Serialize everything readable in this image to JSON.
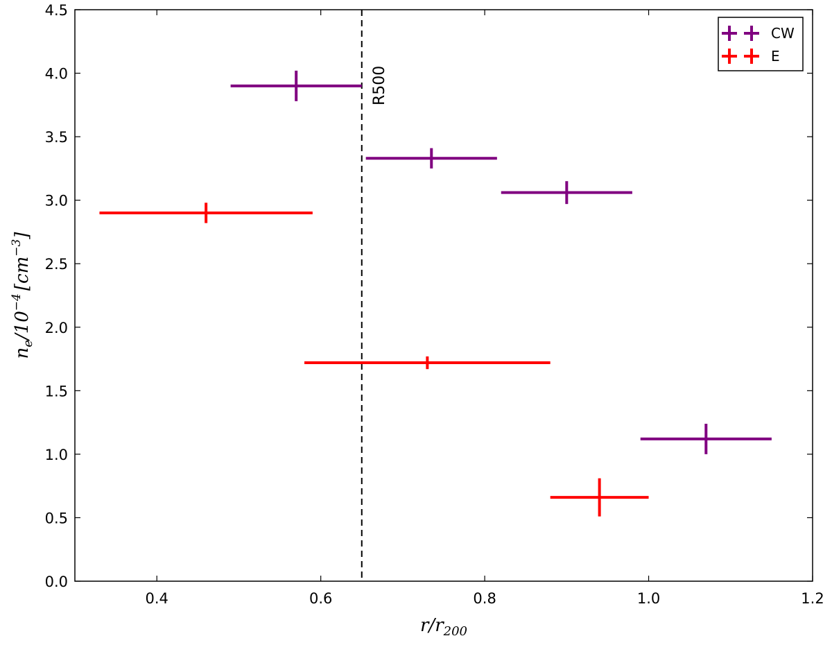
{
  "chart_data": {
    "type": "scatter",
    "title": "",
    "xlabel_main": "r/r",
    "xlabel_sub": "200",
    "ylabel_main": "n",
    "ylabel_sub": "e",
    "ylabel_mid": "/10",
    "ylabel_sup": "−4",
    "ylabel_unit_open": "[cm",
    "ylabel_unit_sup": "−3",
    "ylabel_unit_close": "]",
    "xlim": [
      0.3,
      1.2
    ],
    "ylim": [
      0.0,
      4.5
    ],
    "xticks": [
      0.4,
      0.6,
      0.8,
      1.0,
      1.2
    ],
    "xtick_labels": [
      "0.4",
      "0.6",
      "0.8",
      "1.0",
      "1.2"
    ],
    "yticks": [
      0.0,
      0.5,
      1.0,
      1.5,
      2.0,
      2.5,
      3.0,
      3.5,
      4.0,
      4.5
    ],
    "ytick_labels": [
      "0.0",
      "0.5",
      "1.0",
      "1.5",
      "2.0",
      "2.5",
      "3.0",
      "3.5",
      "4.0",
      "4.5"
    ],
    "grid": false,
    "legend_position": "top-right",
    "series": [
      {
        "name": "CW",
        "color": "#800080",
        "points": [
          {
            "x": 0.57,
            "y": 3.9,
            "xerr_low": 0.08,
            "xerr_high": 0.08,
            "yerr": 0.12
          },
          {
            "x": 0.735,
            "y": 3.33,
            "xerr_low": 0.08,
            "xerr_high": 0.08,
            "yerr": 0.08
          },
          {
            "x": 0.9,
            "y": 3.06,
            "xerr_low": 0.08,
            "xerr_high": 0.08,
            "yerr": 0.09
          },
          {
            "x": 1.07,
            "y": 1.12,
            "xerr_low": 0.08,
            "xerr_high": 0.08,
            "yerr": 0.12
          }
        ]
      },
      {
        "name": "E",
        "color": "#ff0000",
        "points": [
          {
            "x": 0.46,
            "y": 2.9,
            "xerr_low": 0.13,
            "xerr_high": 0.13,
            "yerr": 0.08
          },
          {
            "x": 0.73,
            "y": 1.72,
            "xerr_low": 0.15,
            "xerr_high": 0.15,
            "yerr": 0.05
          },
          {
            "x": 0.94,
            "y": 0.66,
            "xerr_low": 0.06,
            "xerr_high": 0.06,
            "yerr": 0.15
          }
        ]
      }
    ],
    "reference_lines": [
      {
        "x": 0.65,
        "label": "R500",
        "style": "dashed",
        "color": "#000000"
      }
    ]
  }
}
